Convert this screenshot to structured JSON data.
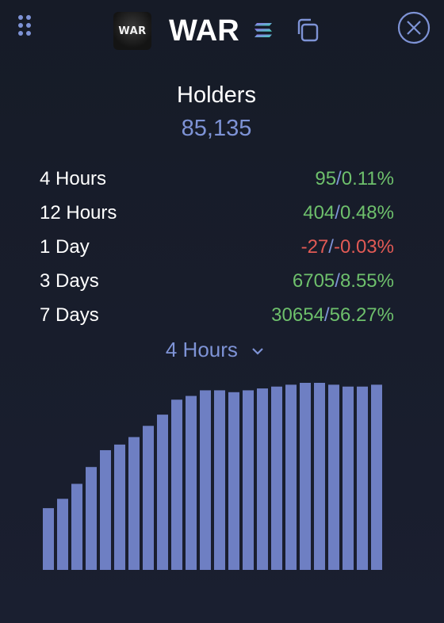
{
  "header": {
    "token_name": "WAR",
    "logo_text": "WAR",
    "icons": {
      "menu": "drag-handle-icon",
      "chain": "solana-icon",
      "copy": "copy-icon",
      "close": "close-icon"
    }
  },
  "holders": {
    "title": "Holders",
    "count": "85,135"
  },
  "stats": [
    {
      "label": "4 Hours",
      "change": "95",
      "sep": "/",
      "percent": "0.11%",
      "trend": "up"
    },
    {
      "label": "12 Hours",
      "change": "404",
      "sep": "/",
      "percent": "0.48%",
      "trend": "up"
    },
    {
      "label": "1 Day",
      "change": "-27",
      "sep": "/",
      "percent": "-0.03%",
      "trend": "down"
    },
    {
      "label": "3 Days",
      "change": "6705",
      "sep": "/",
      "percent": "8.55%",
      "trend": "up"
    },
    {
      "label": "7 Days",
      "change": "30654",
      "sep": "/",
      "percent": "56.27%",
      "trend": "up"
    }
  ],
  "interval_selector": {
    "selected": "4 Hours"
  },
  "colors": {
    "accent": "#7e93d6",
    "bar": "#6e7fc3",
    "positive": "#6ec06c",
    "negative": "#e25a55",
    "background": "#161b27"
  },
  "chart_data": {
    "type": "bar",
    "values": [
      0.33,
      0.38,
      0.46,
      0.55,
      0.64,
      0.67,
      0.71,
      0.77,
      0.83,
      0.91,
      0.93,
      0.96,
      0.96,
      0.95,
      0.96,
      0.97,
      0.98,
      0.99,
      1.0,
      1.0,
      0.99,
      0.98,
      0.98,
      0.99
    ]
  }
}
